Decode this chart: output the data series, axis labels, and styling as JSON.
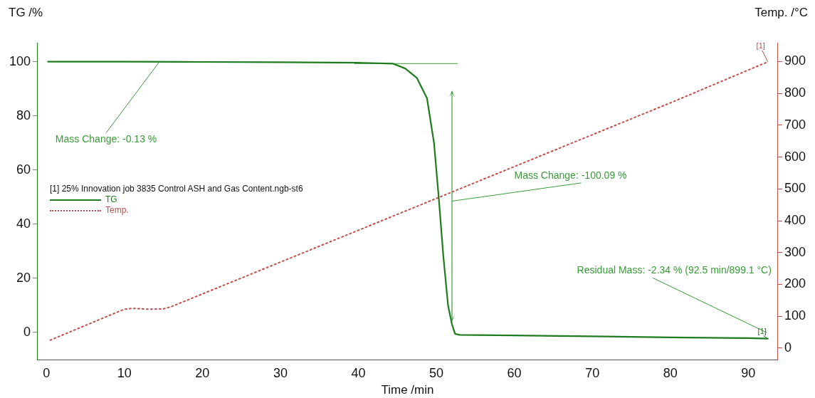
{
  "chart_data": {
    "type": "line",
    "xlabel": "Time /min",
    "ylabel": "TG /%",
    "y2label": "Temp. /°C",
    "legend_title": "[1]  25% Innovation job 3835 Control ASH and Gas Content.ngb-st6",
    "legend": "left",
    "grid": false,
    "marker": "none",
    "xlim": [
      -1.2,
      93.8
    ],
    "xticks": [
      0,
      10,
      20,
      30,
      40,
      50,
      60,
      70,
      80,
      90
    ],
    "ylim": [
      -10,
      107
    ],
    "yticks": [
      0,
      20,
      40,
      60,
      80,
      100
    ],
    "y2lim": [
      -36,
      959
    ],
    "y2ticks": [
      0,
      100,
      200,
      300,
      400,
      500,
      600,
      700,
      800,
      900
    ],
    "series": [
      {
        "name": "TG",
        "color": "#1e7b1e",
        "line_style": "solid",
        "x": [
          0.2,
          10,
          20,
          30,
          40,
          44.4,
          46,
          47.5,
          48.8,
          49.7,
          50.3,
          50.9,
          51.5,
          52,
          52.4,
          53,
          60,
          70,
          80,
          90,
          92.5
        ],
        "values": [
          100,
          100,
          99.9,
          99.8,
          99.6,
          99.3,
          97.5,
          94,
          86.5,
          70,
          50,
          28,
          10,
          3,
          -0.5,
          -0.9,
          -1.1,
          -1.4,
          -1.8,
          -2.1,
          -2.3
        ]
      },
      {
        "name": "Temp.",
        "color": "#c0504d",
        "line_style": "dotted",
        "axis": "y2",
        "x": [
          0.5,
          9,
          10,
          11,
          13,
          15,
          16,
          20,
          40,
          60,
          80,
          92.5
        ],
        "values": [
          25,
          112,
          122,
          125,
          122,
          123,
          130,
          170,
          370,
          570,
          770,
          899
        ]
      },
      {
        "type": "line",
        "color": "#3a9a3a",
        "line_style": "solid",
        "x": [
          39.5,
          52.7
        ],
        "values": [
          99.3,
          99.3
        ]
      }
    ],
    "annotations": [
      {
        "text": "Mass Change: -0.13 %",
        "x": 14.5,
        "y": 100
      },
      "Mass Change: -100.09 %",
      "Residual Mass: -2.34 % (92.5 min/899.1 °C)",
      "[1]",
      "[1]"
    ]
  }
}
